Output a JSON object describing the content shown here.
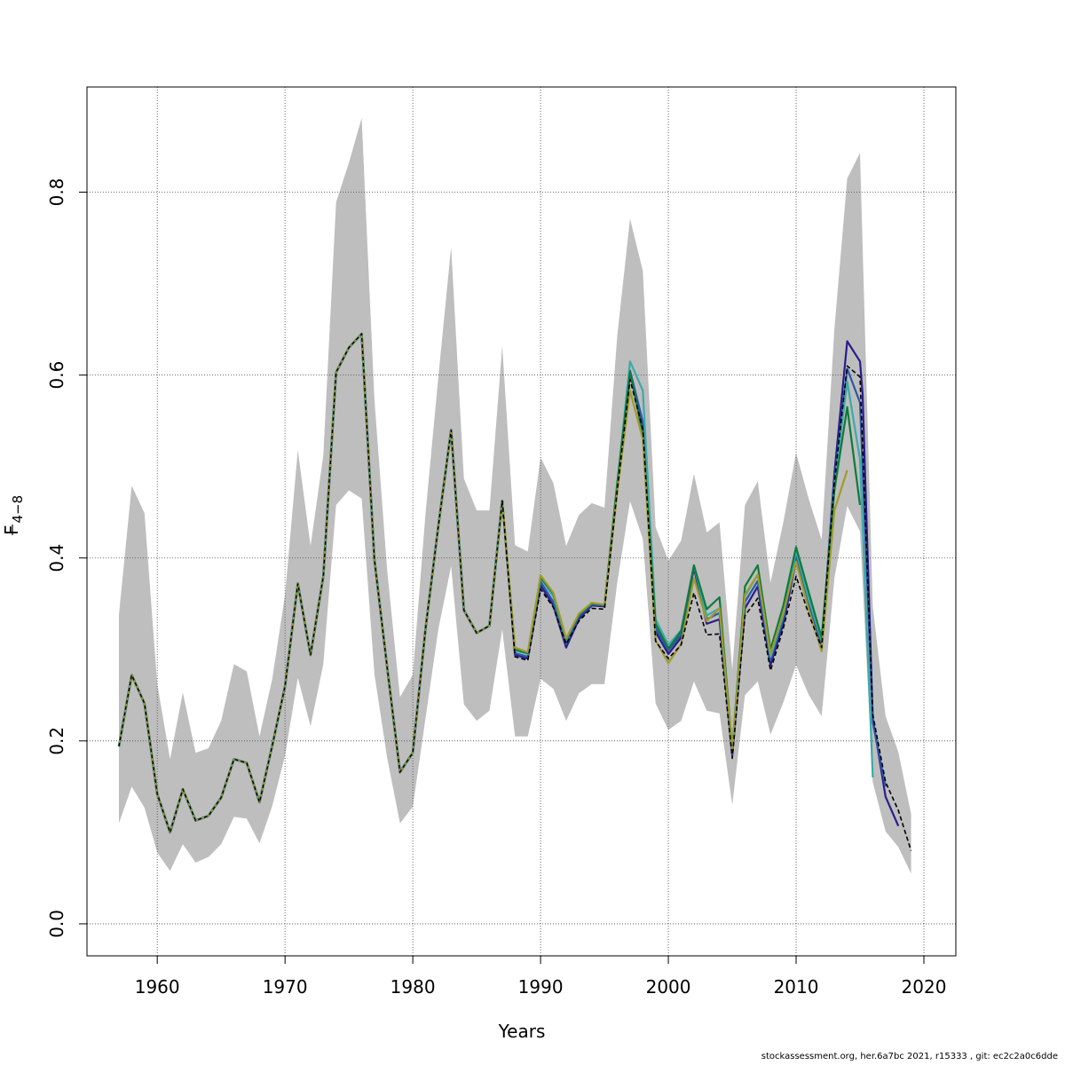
{
  "chart_data": {
    "type": "line",
    "xlabel": "Years",
    "ylabel_main": "F",
    "ylabel_sub": "4−8",
    "xlim": [
      1954.5,
      2022.5
    ],
    "ylim": [
      -0.035,
      0.915
    ],
    "x_ticks": [
      1960,
      1970,
      1980,
      1990,
      2000,
      2010,
      2020
    ],
    "y_ticks": [
      0.0,
      0.2,
      0.4,
      0.6,
      0.8
    ],
    "y_tick_labels": [
      "0.0",
      "0.2",
      "0.4",
      "0.6",
      "0.8"
    ],
    "grid": true,
    "band_color": "#bebebe",
    "confidence_band": {
      "x": [
        1957,
        1958,
        1959,
        1960,
        1961,
        1962,
        1963,
        1964,
        1965,
        1966,
        1967,
        1968,
        1969,
        1970,
        1971,
        1972,
        1973,
        1974,
        1975,
        1976,
        1977,
        1978,
        1979,
        1980,
        1981,
        1982,
        1983,
        1984,
        1985,
        1986,
        1987,
        1988,
        1989,
        1990,
        1991,
        1992,
        1993,
        1994,
        1995,
        1996,
        1997,
        1998,
        1999,
        2000,
        2001,
        2002,
        2003,
        2004,
        2005,
        2006,
        2007,
        2008,
        2009,
        2010,
        2011,
        2012,
        2013,
        2014,
        2015,
        2016,
        2017,
        2018,
        2019
      ],
      "upper": [
        0.338,
        0.479,
        0.449,
        0.262,
        0.18,
        0.253,
        0.187,
        0.192,
        0.222,
        0.284,
        0.276,
        0.205,
        0.268,
        0.36,
        0.518,
        0.413,
        0.512,
        0.789,
        0.832,
        0.881,
        0.573,
        0.386,
        0.248,
        0.272,
        0.449,
        0.598,
        0.74,
        0.487,
        0.452,
        0.452,
        0.632,
        0.414,
        0.407,
        0.51,
        0.482,
        0.413,
        0.447,
        0.46,
        0.455,
        0.643,
        0.771,
        0.714,
        0.434,
        0.397,
        0.419,
        0.492,
        0.428,
        0.439,
        0.278,
        0.458,
        0.484,
        0.373,
        0.439,
        0.515,
        0.464,
        0.42,
        0.651,
        0.815,
        0.843,
        0.347,
        0.227,
        0.188,
        0.12
      ],
      "lower": [
        0.11,
        0.15,
        0.127,
        0.078,
        0.058,
        0.087,
        0.067,
        0.073,
        0.087,
        0.117,
        0.115,
        0.088,
        0.129,
        0.184,
        0.269,
        0.216,
        0.284,
        0.458,
        0.474,
        0.465,
        0.273,
        0.181,
        0.11,
        0.128,
        0.225,
        0.322,
        0.391,
        0.24,
        0.222,
        0.233,
        0.322,
        0.205,
        0.205,
        0.268,
        0.257,
        0.222,
        0.252,
        0.262,
        0.262,
        0.373,
        0.462,
        0.421,
        0.241,
        0.212,
        0.222,
        0.265,
        0.233,
        0.23,
        0.13,
        0.25,
        0.265,
        0.207,
        0.242,
        0.283,
        0.25,
        0.227,
        0.378,
        0.457,
        0.429,
        0.155,
        0.101,
        0.084,
        0.055
      ]
    },
    "common_history": {
      "x": [
        1957,
        1958,
        1959,
        1960,
        1961,
        1962,
        1963,
        1964,
        1965,
        1966,
        1967,
        1968,
        1969,
        1970,
        1971,
        1972,
        1973,
        1974,
        1975,
        1976,
        1977,
        1978,
        1979,
        1980,
        1981,
        1982,
        1983,
        1984,
        1985,
        1986,
        1987
      ],
      "y": [
        0.194,
        0.272,
        0.241,
        0.142,
        0.1,
        0.147,
        0.113,
        0.118,
        0.138,
        0.18,
        0.176,
        0.133,
        0.195,
        0.26,
        0.372,
        0.294,
        0.38,
        0.603,
        0.63,
        0.645,
        0.398,
        0.28,
        0.166,
        0.187,
        0.323,
        0.435,
        0.54,
        0.343,
        0.318,
        0.326,
        0.463
      ]
    },
    "series": [
      {
        "color": "#2a1d8c",
        "style": "solid",
        "x": [
          1987,
          1988,
          1989,
          1990,
          1991,
          1992,
          1993,
          1994,
          1995,
          1996,
          1997,
          1998,
          1999,
          2000,
          2001,
          2002,
          2003,
          2004,
          2005,
          2006,
          2007,
          2008,
          2009,
          2010,
          2011,
          2012,
          2013,
          2014,
          2015,
          2015.2,
          2016,
          2017,
          2018
        ],
        "y": [
          0.463,
          0.294,
          0.29,
          0.37,
          0.348,
          0.302,
          0.333,
          0.348,
          0.347,
          0.474,
          0.601,
          0.545,
          0.319,
          0.295,
          0.313,
          0.389,
          0.328,
          0.333,
          0.184,
          0.345,
          0.369,
          0.283,
          0.328,
          0.397,
          0.344,
          0.302,
          0.493,
          0.637,
          0.615,
          0.58,
          0.225,
          0.139,
          0.107
        ]
      },
      {
        "color": "#2958a8",
        "style": "solid",
        "x": [
          1987,
          1988,
          1989,
          1990,
          1991,
          1992,
          1993,
          1994,
          1995,
          1996,
          1997,
          1998,
          1999,
          2000,
          2001,
          2002,
          2003,
          2004,
          2005,
          2006,
          2007,
          2008,
          2009,
          2010,
          2011,
          2012,
          2013,
          2014,
          2015,
          2016,
          2017
        ],
        "y": [
          0.463,
          0.296,
          0.292,
          0.374,
          0.352,
          0.306,
          0.336,
          0.349,
          0.348,
          0.477,
          0.605,
          0.549,
          0.323,
          0.299,
          0.316,
          0.391,
          0.333,
          0.34,
          0.186,
          0.352,
          0.375,
          0.288,
          0.333,
          0.402,
          0.349,
          0.306,
          0.485,
          0.607,
          0.57,
          0.22,
          0.15
        ]
      },
      {
        "color": "#3ea9a9",
        "style": "solid",
        "x": [
          1987,
          1988,
          1989,
          1990,
          1991,
          1992,
          1993,
          1994,
          1995,
          1996,
          1997,
          1998,
          1999,
          2000,
          2001,
          2002,
          2003,
          2004,
          2005,
          2006,
          2007,
          2008,
          2009,
          2010,
          2011,
          2012,
          2013,
          2014,
          2015,
          2016
        ],
        "y": [
          0.463,
          0.299,
          0.295,
          0.378,
          0.358,
          0.31,
          0.339,
          0.35,
          0.349,
          0.48,
          0.615,
          0.583,
          0.333,
          0.305,
          0.321,
          0.392,
          0.337,
          0.345,
          0.187,
          0.358,
          0.382,
          0.292,
          0.338,
          0.408,
          0.354,
          0.31,
          0.478,
          0.593,
          0.508,
          0.16
        ]
      },
      {
        "color": "#0f7a3c",
        "style": "solid",
        "x": [
          1987,
          1988,
          1989,
          1990,
          1991,
          1992,
          1993,
          1994,
          1995,
          1996,
          1997,
          1998,
          1999,
          2000,
          2001,
          2002,
          2003,
          2004,
          2005,
          2006,
          2007,
          2008,
          2009,
          2010,
          2011,
          2012,
          2013,
          2014,
          2015
        ],
        "y": [
          0.463,
          0.3,
          0.296,
          0.379,
          0.361,
          0.311,
          0.338,
          0.35,
          0.349,
          0.482,
          0.604,
          0.535,
          0.328,
          0.301,
          0.32,
          0.392,
          0.344,
          0.357,
          0.191,
          0.369,
          0.392,
          0.3,
          0.348,
          0.412,
          0.362,
          0.313,
          0.474,
          0.565,
          0.458
        ]
      },
      {
        "color": "#a09b2a",
        "style": "solid",
        "x": [
          1987,
          1988,
          1989,
          1990,
          1991,
          1992,
          1993,
          1994,
          1995,
          1996,
          1997,
          1998,
          1999,
          2000,
          2001,
          2002,
          2003,
          2004,
          2005,
          2006,
          2007,
          2008,
          2009,
          2010,
          2011,
          2012,
          2013,
          2014
        ],
        "y": [
          0.463,
          0.302,
          0.297,
          0.381,
          0.362,
          0.312,
          0.339,
          0.351,
          0.349,
          0.473,
          0.583,
          0.53,
          0.31,
          0.285,
          0.306,
          0.378,
          0.331,
          0.345,
          0.19,
          0.36,
          0.382,
          0.295,
          0.34,
          0.396,
          0.343,
          0.298,
          0.452,
          0.496
        ]
      },
      {
        "color": "#000000",
        "style": "dashed",
        "x": [
          1987,
          1988,
          1989,
          1990,
          1991,
          1992,
          1993,
          1994,
          1995,
          1996,
          1997,
          1998,
          1999,
          2000,
          2001,
          2002,
          2003,
          2004,
          2005,
          2006,
          2007,
          2008,
          2009,
          2010,
          2011,
          2012,
          2013,
          2014,
          2015,
          2016,
          2017,
          2018,
          2019
        ],
        "y": [
          0.463,
          0.292,
          0.288,
          0.366,
          0.346,
          0.306,
          0.331,
          0.345,
          0.344,
          0.474,
          0.595,
          0.541,
          0.309,
          0.29,
          0.305,
          0.362,
          0.316,
          0.317,
          0.181,
          0.337,
          0.356,
          0.277,
          0.323,
          0.38,
          0.338,
          0.302,
          0.483,
          0.61,
          0.598,
          0.229,
          0.155,
          0.124,
          0.08
        ]
      }
    ]
  },
  "footer": {
    "text": "stockassessment.org, her.6a7bc  2021, r15333 , git: ec2c2a0c6dde"
  }
}
